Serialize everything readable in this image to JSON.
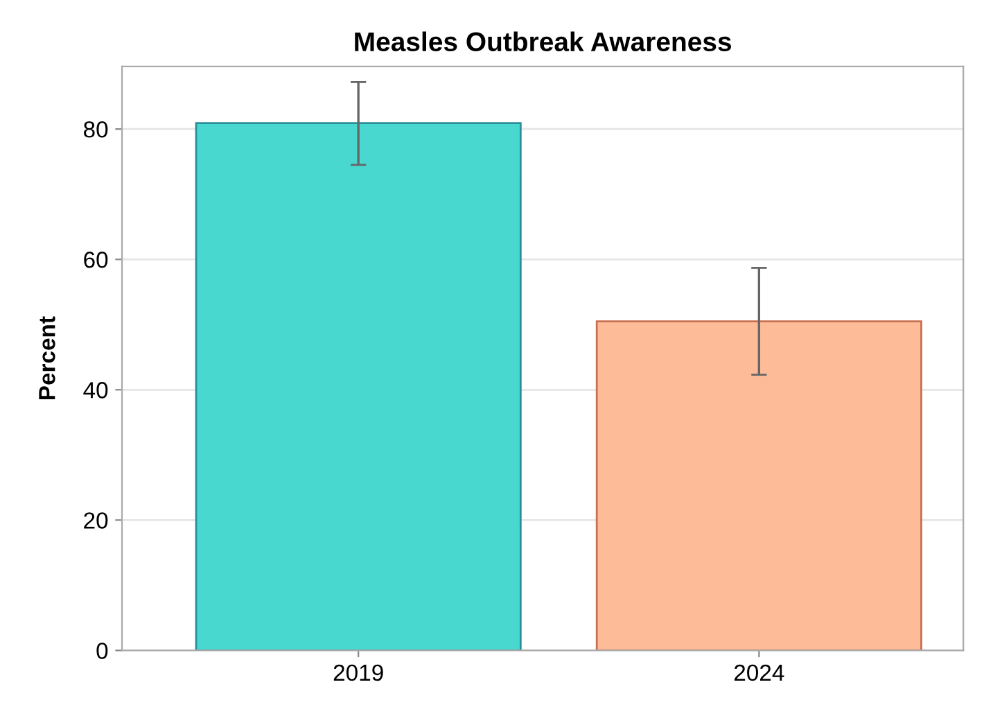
{
  "chart_data": {
    "type": "bar",
    "title": "Measles Outbreak Awareness",
    "ylabel": "Percent",
    "categories": [
      "2019",
      "2024"
    ],
    "values": [
      80.9,
      50.5
    ],
    "colors": [
      "#48d8d0",
      "#fdbb97"
    ],
    "errors": [
      [
        74.5,
        87.2
      ],
      [
        42.3,
        58.7
      ]
    ],
    "ylim": [
      0,
      89.6
    ],
    "yticks": [
      0,
      20,
      40,
      60,
      80
    ],
    "grid": "y"
  }
}
